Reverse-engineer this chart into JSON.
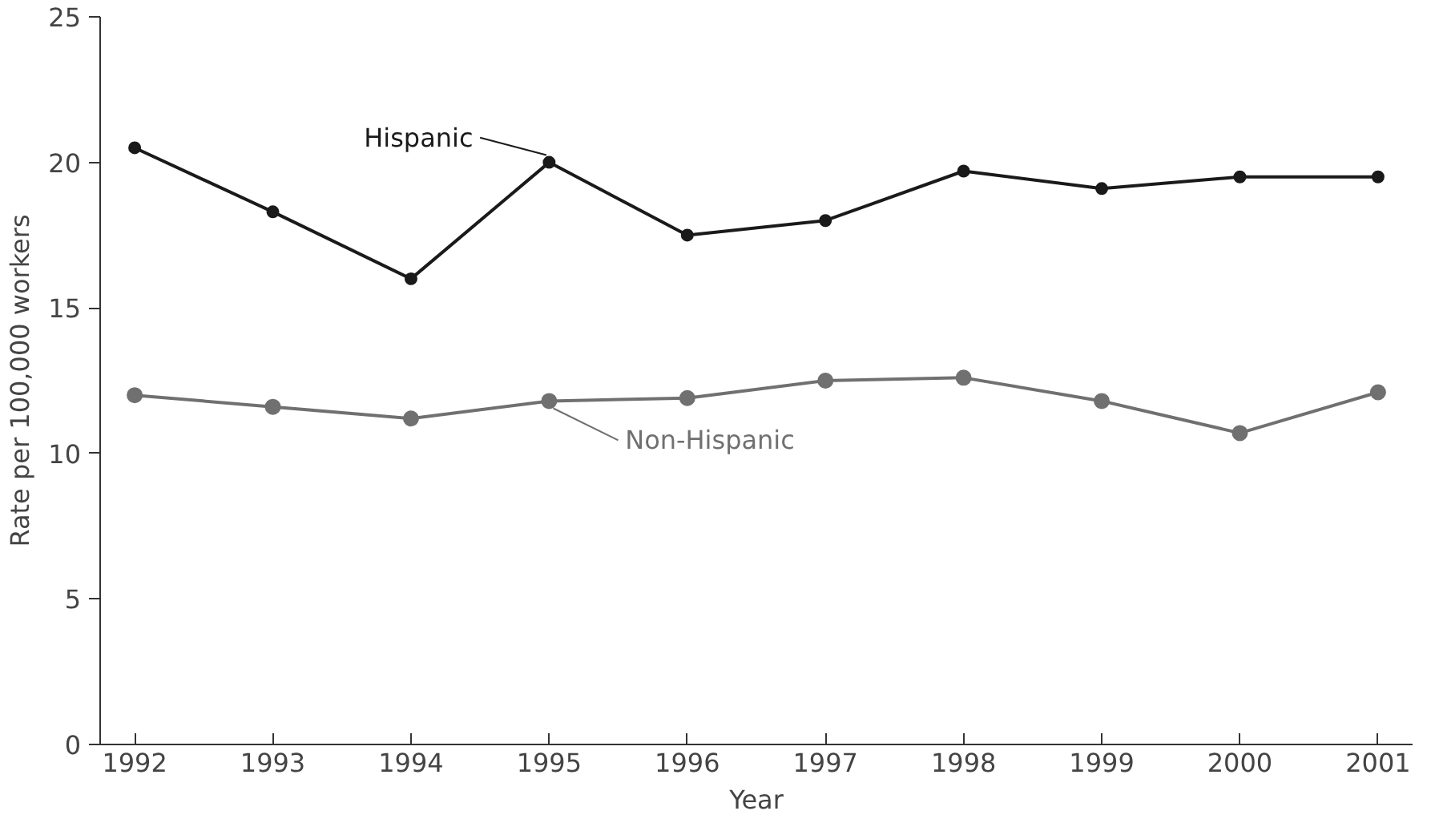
{
  "chart_data": {
    "type": "line",
    "xlabel": "Year",
    "ylabel": "Rate per 100,000 workers",
    "x": [
      1992,
      1993,
      1994,
      1995,
      1996,
      1997,
      1998,
      1999,
      2000,
      2001
    ],
    "series": [
      {
        "name": "Hispanic",
        "color": "#1a1a1a",
        "values": [
          20.5,
          18.3,
          16.0,
          20.0,
          17.5,
          18.0,
          19.7,
          19.1,
          19.5,
          19.5
        ]
      },
      {
        "name": "Non-Hispanic",
        "color": "#707070",
        "values": [
          12.0,
          11.6,
          11.2,
          11.8,
          11.9,
          12.5,
          12.6,
          11.8,
          10.7,
          12.1
        ]
      }
    ],
    "xlim": [
      1991.75,
      2001.25
    ],
    "ylim": [
      0,
      25
    ],
    "xticks": [
      1992,
      1993,
      1994,
      1995,
      1996,
      1997,
      1998,
      1999,
      2000,
      2001
    ],
    "yticks": [
      0,
      5,
      10,
      15,
      20,
      25
    ],
    "grid": false,
    "marker": "circle",
    "line_style": "solid"
  }
}
